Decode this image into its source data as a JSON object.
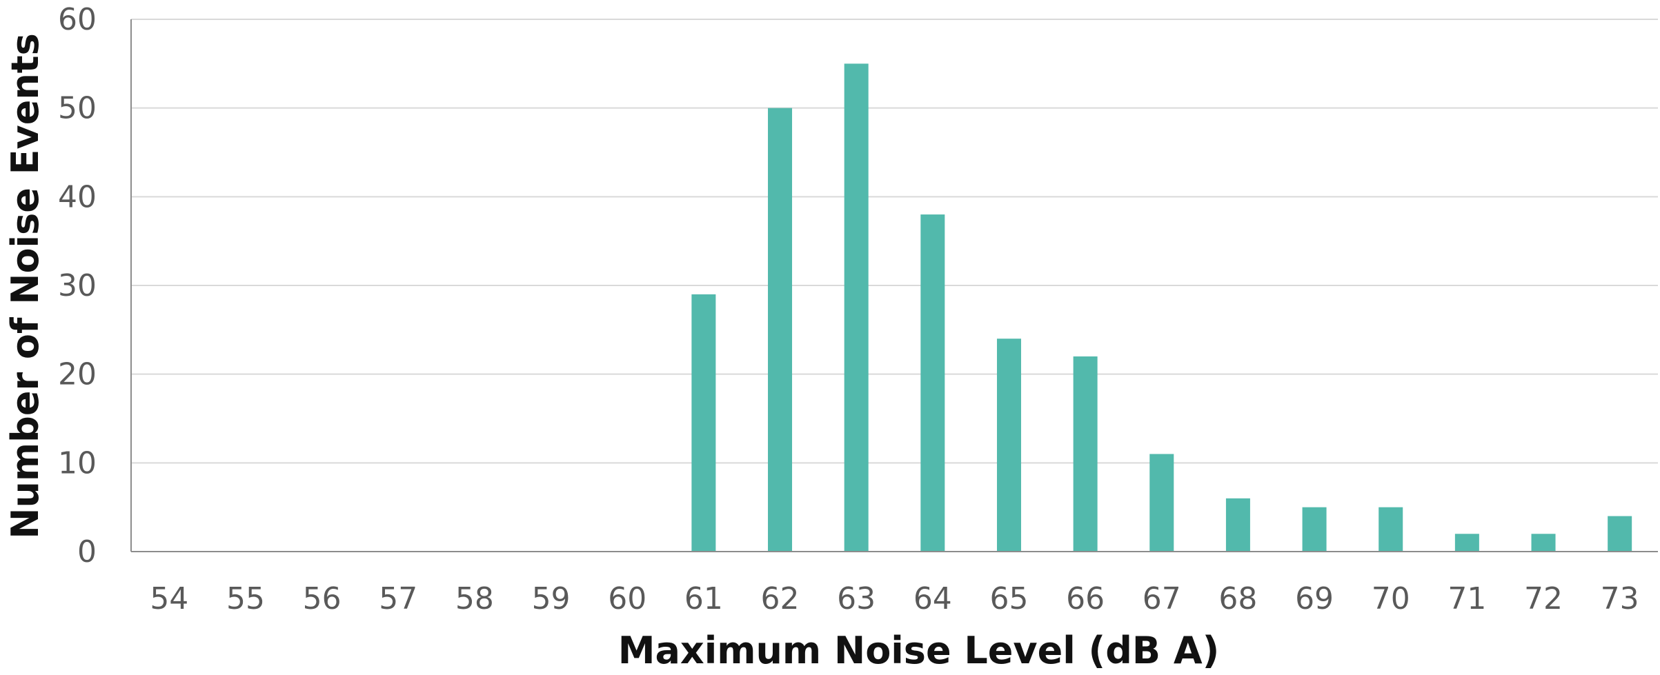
{
  "chart_data": {
    "type": "bar",
    "xlabel": "Maximum Noise Level (dB A)",
    "ylabel": "Number of Noise Events",
    "categories": [
      "54",
      "55",
      "56",
      "57",
      "58",
      "59",
      "60",
      "61",
      "62",
      "63",
      "64",
      "65",
      "66",
      "67",
      "68",
      "69",
      "70",
      "71",
      "72",
      "73"
    ],
    "values": [
      0,
      0,
      0,
      0,
      0,
      0,
      0,
      29,
      50,
      55,
      38,
      24,
      22,
      11,
      6,
      5,
      5,
      2,
      2,
      4
    ],
    "ylim": [
      0,
      60
    ],
    "yticks": [
      0,
      10,
      20,
      30,
      40,
      50,
      60
    ],
    "grid": true,
    "legend": "none",
    "bar_color": "#52b9ac"
  }
}
